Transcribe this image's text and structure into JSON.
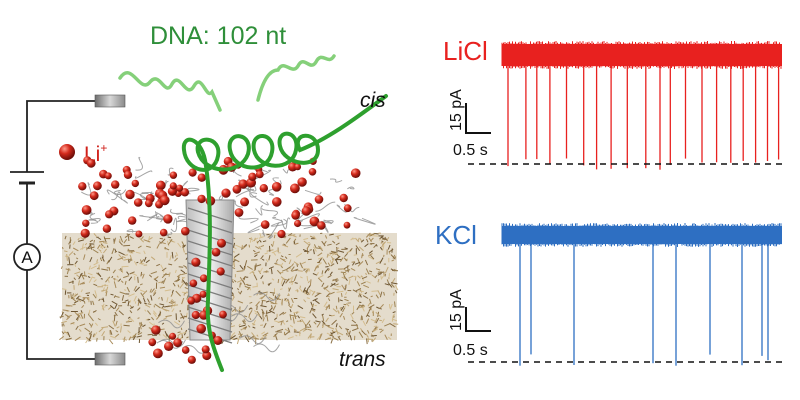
{
  "figure": {
    "dna_label": "DNA: 102 nt",
    "cis_label": "cis",
    "trans_label": "trans",
    "ion_label": "Li",
    "ion_charge": "+",
    "ammeter_label": "A"
  },
  "traces": [
    {
      "label": "LiCl",
      "color": "#e8211f",
      "current_scale_label": "15 pA",
      "time_scale_label": "0.5 s"
    },
    {
      "label": "KCl",
      "color": "#2e6fc2",
      "current_scale_label": "15 pA",
      "time_scale_label": "0.5 s"
    }
  ],
  "colors": {
    "dna": "#2ea02e",
    "dna_light": "#7fcf6f",
    "membrane": "#a0875c",
    "ion": "#d0201a",
    "title_green": "#2f8f3a"
  }
}
